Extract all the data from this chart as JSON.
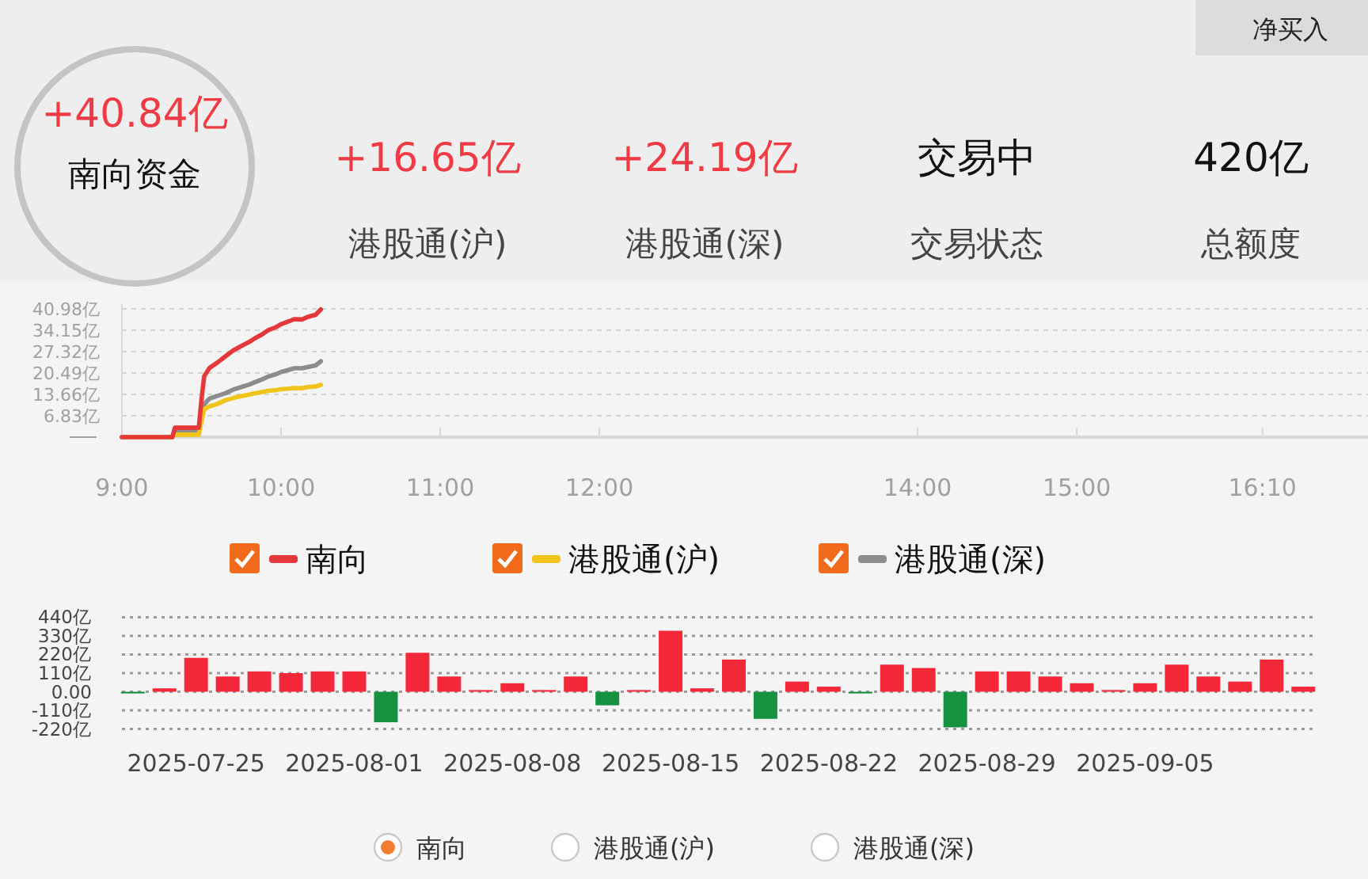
{
  "chart_data": [
    {
      "type": "other",
      "annotations": [
        "+40.84亿",
        "南向资金",
        "+16.65亿",
        "港股通(沪)",
        "+24.19亿",
        "港股通(深)",
        "交易中",
        "交易状态",
        "420亿",
        "总额度",
        "净买入"
      ]
    },
    {
      "type": "line",
      "x": [
        9,
        9.317,
        9.333,
        9.483,
        9.5,
        9.517,
        9.55,
        9.6,
        9.65,
        9.7,
        9.75,
        9.8,
        9.833,
        9.883,
        9.917,
        9.967,
        10,
        10.05,
        10.083,
        10.133,
        10.167,
        10.217,
        10.25
      ],
      "series": [
        {
          "name": "南向",
          "color": "#e5383b",
          "values": [
            0,
            0,
            3,
            3,
            12,
            19.4,
            22.1,
            23.8,
            25.8,
            27.7,
            29.1,
            30.4,
            31.5,
            32.9,
            34.1,
            35.1,
            36.1,
            37,
            37.7,
            37.6,
            38.4,
            39.1,
            40.8
          ]
        },
        {
          "name": "港股通(沪)",
          "color": "#f0c419",
          "values": [
            0,
            0,
            0.8,
            0.8,
            5,
            8.9,
            9.8,
            10.6,
            11.8,
            12.5,
            13.1,
            13.6,
            14,
            14.4,
            14.8,
            15,
            15.3,
            15.5,
            15.7,
            15.6,
            16,
            16.2,
            16.7
          ]
        },
        {
          "name": "港股通(深)",
          "color": "#8c8c8c",
          "values": [
            0,
            0,
            2.2,
            2.2,
            7,
            10.5,
            12.3,
            13.2,
            14,
            15.2,
            16,
            16.8,
            17.5,
            18.5,
            19.3,
            20.1,
            20.8,
            21.5,
            22,
            22,
            22.4,
            22.9,
            24.2
          ]
        }
      ],
      "xlim": [
        9,
        16.83
      ],
      "xticks": [
        {
          "value": 9,
          "label": "9:00"
        },
        {
          "value": 10,
          "label": "10:00"
        },
        {
          "value": 11,
          "label": "11:00"
        },
        {
          "value": 12,
          "label": "12:00"
        },
        {
          "value": 14,
          "label": "14:00"
        },
        {
          "value": 15,
          "label": "15:00"
        },
        {
          "value": 16.1667,
          "label": "16:10"
        }
      ],
      "ylim": [
        0,
        40.98
      ],
      "yticks": [
        {
          "value": 0,
          "label": null
        },
        {
          "value": 6.83,
          "label": "6.83亿"
        },
        {
          "value": 13.66,
          "label": "13.66亿"
        },
        {
          "value": 20.49,
          "label": "20.49亿"
        },
        {
          "value": 27.32,
          "label": "27.32亿"
        },
        {
          "value": 34.15,
          "label": "34.15亿"
        },
        {
          "value": 40.98,
          "label": "40.98亿"
        }
      ],
      "grid": "y",
      "legend": "bottom",
      "line_style": "solid",
      "marker": "none"
    },
    {
      "type": "bar",
      "categories": [
        null,
        null,
        "2025-07-25",
        null,
        null,
        null,
        null,
        "2025-08-01",
        null,
        null,
        null,
        null,
        "2025-08-08",
        null,
        null,
        null,
        null,
        "2025-08-15",
        null,
        null,
        null,
        null,
        "2025-08-22",
        null,
        null,
        null,
        null,
        "2025-08-29",
        null,
        null,
        null,
        null,
        "2025-09-05",
        null,
        null,
        null,
        null,
        null
      ],
      "values": [
        -10,
        20,
        200,
        90,
        120,
        110,
        120,
        120,
        -180,
        230,
        90,
        10,
        50,
        10,
        90,
        -80,
        10,
        360,
        20,
        190,
        -160,
        60,
        30,
        -10,
        160,
        140,
        -210,
        120,
        120,
        90,
        50,
        10,
        50,
        160,
        90,
        60,
        190,
        30
      ],
      "colors": [
        "#16913f",
        "#f5283a",
        "#f5283a",
        "#f5283a",
        "#f5283a",
        "#f5283a",
        "#f5283a",
        "#f5283a",
        "#16913f",
        "#f5283a",
        "#f5283a",
        "#f5283a",
        "#f5283a",
        "#f5283a",
        "#f5283a",
        "#16913f",
        "#f5283a",
        "#f5283a",
        "#f5283a",
        "#f5283a",
        "#16913f",
        "#f5283a",
        "#f5283a",
        "#16913f",
        "#f5283a",
        "#f5283a",
        "#16913f",
        "#f5283a",
        "#f5283a",
        "#f5283a",
        "#f5283a",
        "#f5283a",
        "#f5283a",
        "#f5283a",
        "#f5283a",
        "#f5283a",
        "#f5283a",
        "#f5283a"
      ],
      "ylim": [
        -220,
        440
      ],
      "yticks": [
        {
          "value": 440,
          "label": "440亿"
        },
        {
          "value": 330,
          "label": "330亿"
        },
        {
          "value": 220,
          "label": "220亿"
        },
        {
          "value": 110,
          "label": "110亿"
        },
        {
          "value": 0,
          "label": "0.00"
        },
        {
          "value": -110,
          "label": "-110亿"
        },
        {
          "value": -220,
          "label": "-220亿"
        }
      ],
      "grid": "y",
      "annotations": [
        "南向",
        "港股通(沪)",
        "港股通(深)"
      ]
    }
  ]
}
